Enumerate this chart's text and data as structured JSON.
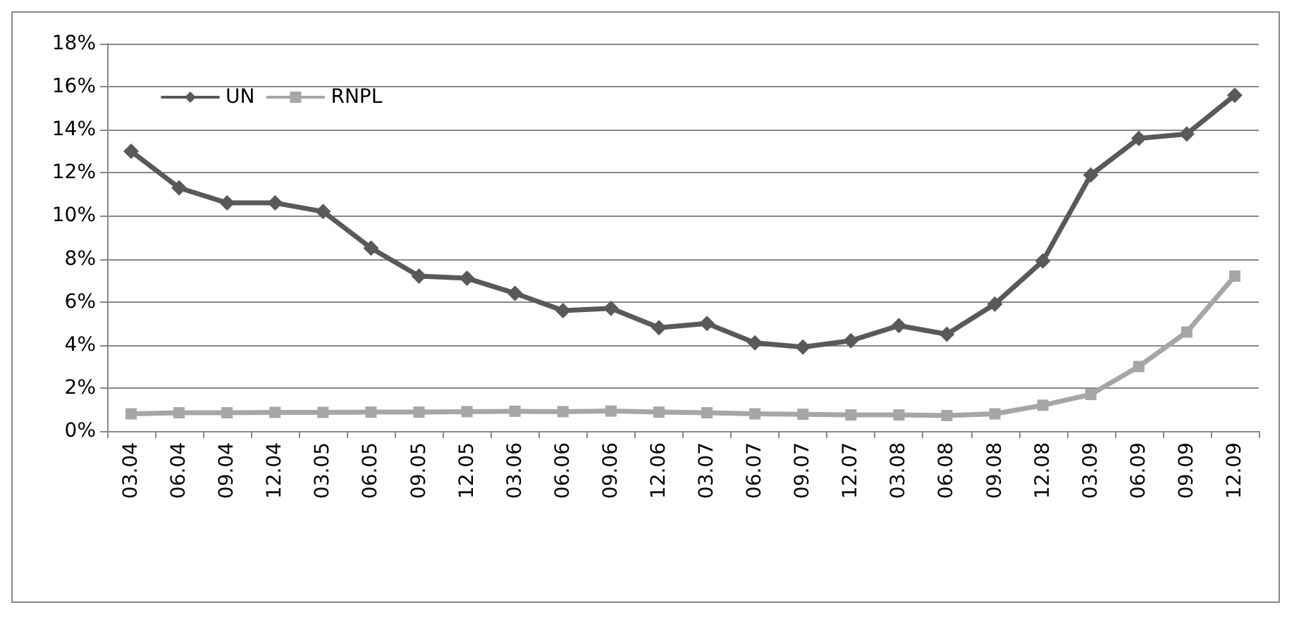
{
  "chart_data": {
    "type": "line",
    "categories": [
      "03.04",
      "06.04",
      "09.04",
      "12.04",
      "03.05",
      "06.05",
      "09.05",
      "12.05",
      "03.06",
      "06.06",
      "09.06",
      "12.06",
      "03.07",
      "06.07",
      "09.07",
      "12.07",
      "03.08",
      "06.08",
      "09.08",
      "12.08",
      "03.09",
      "06.09",
      "09.09",
      "12.09"
    ],
    "series": [
      {
        "name": "UN",
        "color": "#595959",
        "marker": "diamond",
        "values": [
          13.0,
          11.3,
          10.6,
          10.6,
          10.2,
          8.5,
          7.2,
          7.1,
          6.4,
          5.6,
          5.7,
          4.8,
          5.0,
          4.1,
          3.9,
          4.2,
          4.9,
          4.5,
          5.9,
          7.9,
          11.9,
          13.6,
          13.8,
          15.6
        ]
      },
      {
        "name": "RNPL",
        "color": "#a6a6a6",
        "marker": "square",
        "values": [
          0.8,
          0.85,
          0.85,
          0.87,
          0.87,
          0.88,
          0.88,
          0.9,
          0.92,
          0.9,
          0.93,
          0.88,
          0.85,
          0.8,
          0.78,
          0.75,
          0.75,
          0.72,
          0.8,
          1.2,
          1.7,
          3.0,
          4.6,
          7.2
        ]
      }
    ],
    "ylim": [
      0,
      18
    ],
    "yticks": [
      {
        "value": 0,
        "label": "0%"
      },
      {
        "value": 2,
        "label": "2%"
      },
      {
        "value": 4,
        "label": "4%"
      },
      {
        "value": 6,
        "label": "6%"
      },
      {
        "value": 8,
        "label": "8%"
      },
      {
        "value": 10,
        "label": "10%"
      },
      {
        "value": 12,
        "label": "12%"
      },
      {
        "value": 14,
        "label": "14%"
      },
      {
        "value": 16,
        "label": "16%"
      },
      {
        "value": 18,
        "label": "18%"
      }
    ],
    "grid": "y",
    "legend": "top left",
    "line_style": "solid"
  }
}
